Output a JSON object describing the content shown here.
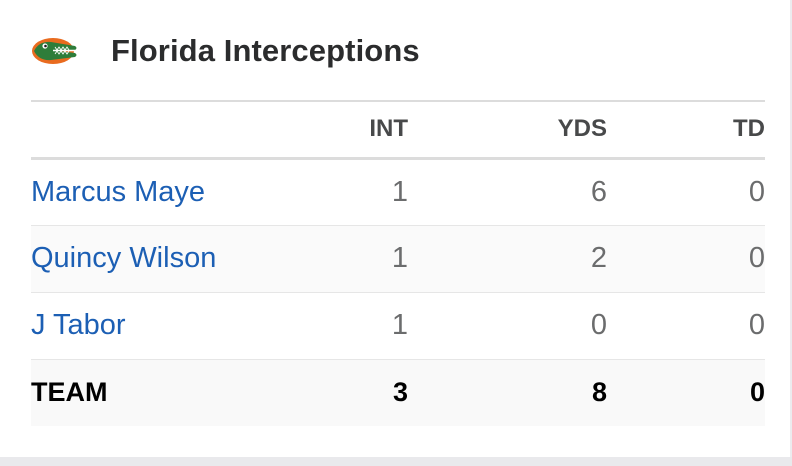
{
  "header": {
    "title": "Florida Interceptions",
    "logo_icon": "gator-logo-icon"
  },
  "table": {
    "columns": [
      "",
      "INT",
      "YDS",
      "TD"
    ],
    "rows": [
      {
        "name": "Marcus Maye",
        "int": "1",
        "yds": "6",
        "td": "0"
      },
      {
        "name": "Quincy Wilson",
        "int": "1",
        "yds": "2",
        "td": "0"
      },
      {
        "name": "J Tabor",
        "int": "1",
        "yds": "0",
        "td": "0"
      }
    ],
    "team": {
      "name": "TEAM",
      "int": "3",
      "yds": "8",
      "td": "0"
    }
  },
  "colors": {
    "link": "#1c5fb4",
    "title": "#2b2c2d",
    "gator_green": "#2e7d3a",
    "gator_orange": "#e96b1f"
  }
}
